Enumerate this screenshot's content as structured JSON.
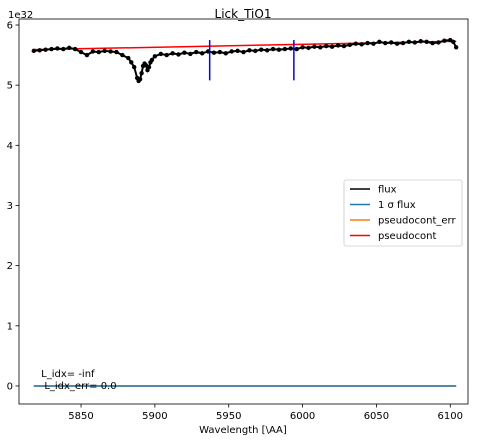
{
  "chart_data": {
    "type": "line",
    "title": "Lick_TiO1",
    "xlabel": "Wavelength [\\AA]",
    "ylabel": "",
    "y_offset_label": "1e32",
    "xlim": [
      5808,
      6112
    ],
    "ylim": [
      -0.3,
      6.1
    ],
    "xticks": [
      5850,
      5900,
      5950,
      6000,
      6050,
      6100
    ],
    "yticks": [
      0,
      1,
      2,
      3,
      4,
      5,
      6
    ],
    "grid": false,
    "legend_position": "center-right",
    "legend": [
      {
        "label": "flux",
        "color": "#000000"
      },
      {
        "label": "1 σ flux",
        "color": "#1f77b4"
      },
      {
        "label": "pseudocont_err",
        "color": "#ff7f0e"
      },
      {
        "label": "pseudocont",
        "color": "#ff0000"
      }
    ],
    "series": [
      {
        "name": "flux",
        "color": "#000000",
        "marker": "dot",
        "x": [
          5818,
          5822,
          5826,
          5830,
          5834,
          5838,
          5842,
          5846,
          5850,
          5854,
          5858,
          5862,
          5866,
          5870,
          5874,
          5878,
          5882,
          5884,
          5886,
          5888,
          5889,
          5890,
          5891,
          5892,
          5893,
          5894,
          5895,
          5896,
          5897,
          5898,
          5900,
          5904,
          5908,
          5912,
          5916,
          5920,
          5924,
          5928,
          5932,
          5936,
          5940,
          5944,
          5948,
          5952,
          5956,
          5960,
          5964,
          5968,
          5972,
          5976,
          5980,
          5984,
          5988,
          5992,
          5996,
          6000,
          6004,
          6008,
          6012,
          6016,
          6020,
          6024,
          6028,
          6032,
          6036,
          6040,
          6044,
          6048,
          6052,
          6056,
          6060,
          6064,
          6068,
          6072,
          6076,
          6080,
          6084,
          6088,
          6092,
          6096,
          6100,
          6102,
          6104
        ],
        "y": [
          5.57,
          5.58,
          5.59,
          5.6,
          5.61,
          5.6,
          5.62,
          5.6,
          5.55,
          5.5,
          5.56,
          5.55,
          5.57,
          5.56,
          5.55,
          5.5,
          5.45,
          5.38,
          5.3,
          5.12,
          5.07,
          5.1,
          5.2,
          5.32,
          5.36,
          5.33,
          5.25,
          5.3,
          5.38,
          5.42,
          5.48,
          5.52,
          5.5,
          5.53,
          5.51,
          5.54,
          5.52,
          5.55,
          5.53,
          5.56,
          5.54,
          5.55,
          5.53,
          5.56,
          5.57,
          5.55,
          5.58,
          5.57,
          5.59,
          5.58,
          5.6,
          5.59,
          5.6,
          5.61,
          5.6,
          5.63,
          5.62,
          5.64,
          5.63,
          5.65,
          5.64,
          5.66,
          5.65,
          5.67,
          5.69,
          5.68,
          5.7,
          5.69,
          5.72,
          5.7,
          5.71,
          5.69,
          5.7,
          5.72,
          5.71,
          5.73,
          5.72,
          5.7,
          5.71,
          5.74,
          5.75,
          5.72,
          5.63
        ]
      },
      {
        "name": "1 σ flux",
        "color": "#1f77b4",
        "x": [
          5818,
          6104
        ],
        "y": [
          0,
          0
        ]
      },
      {
        "name": "pseudocont_err",
        "color": "#ff7f0e",
        "x": [
          5818,
          6104
        ],
        "y": [
          0,
          0
        ]
      },
      {
        "name": "pseudocont",
        "color": "#ff0000",
        "x": [
          5818,
          6104
        ],
        "y": [
          5.59,
          5.73
        ]
      }
    ],
    "vlines": [
      {
        "x": 5937.1,
        "ymin": 5.08,
        "ymax": 5.75,
        "color": "#0000ff"
      },
      {
        "x": 5994.1,
        "ymin": 5.08,
        "ymax": 5.75,
        "color": "#0000ff"
      }
    ],
    "annotations": [
      {
        "text": "L_idx= -inf",
        "x": 5823,
        "y": 0.2
      },
      {
        "text": " L_idx_err= 0.0",
        "x": 5823,
        "y": 0.0
      }
    ]
  }
}
